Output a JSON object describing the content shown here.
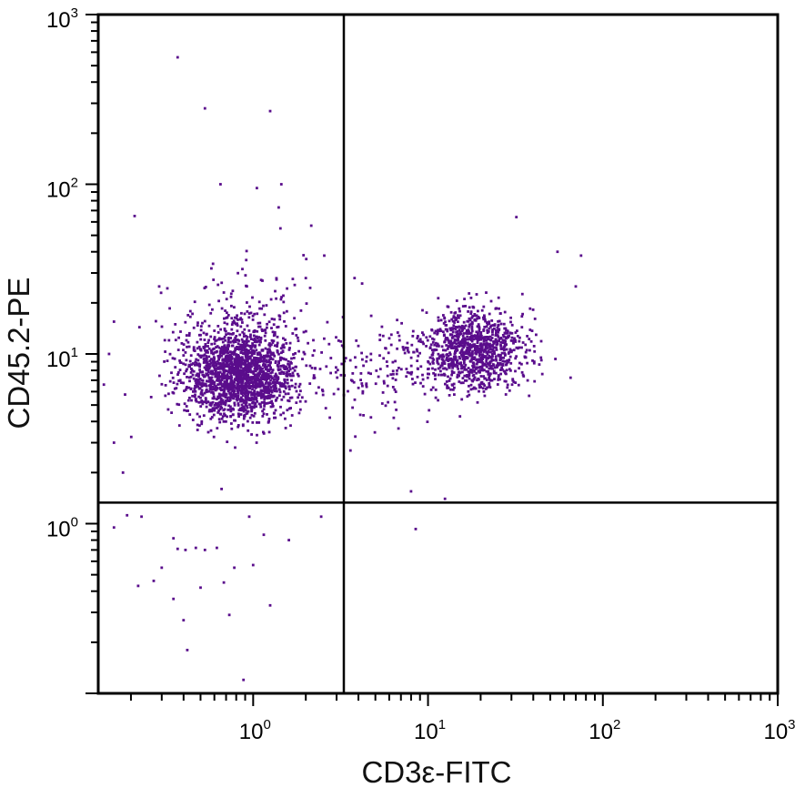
{
  "chart_data": {
    "type": "scatter",
    "title": "",
    "xlabel": "CD3ε-FITC",
    "ylabel": "CD45.2-PE",
    "x_scale": "log",
    "y_scale": "log",
    "xlim": [
      0.13,
      1000
    ],
    "ylim": [
      0.1,
      1000
    ],
    "x_tick_labels": [
      {
        "base": "10",
        "exp": "0",
        "value": 1
      },
      {
        "base": "10",
        "exp": "1",
        "value": 10
      },
      {
        "base": "10",
        "exp": "2",
        "value": 100
      },
      {
        "base": "10",
        "exp": "3",
        "value": 1000
      }
    ],
    "y_tick_labels": [
      {
        "base": "10",
        "exp": "0",
        "value": 1
      },
      {
        "base": "10",
        "exp": "1",
        "value": 10
      },
      {
        "base": "10",
        "exp": "2",
        "value": 100
      },
      {
        "base": "10",
        "exp": "3",
        "value": 1000
      }
    ],
    "quadrant_gates": {
      "x": 3.3,
      "y": 1.33
    },
    "grid": false,
    "legend": "none",
    "point_color": "#5a0d8c",
    "series": [
      {
        "clusters": [
          {
            "center": [
              0.85,
              7.5
            ],
            "spread": [
              0.16,
              0.13
            ],
            "count": 1800
          },
          {
            "center": [
              18,
              10.5
            ],
            "spread": [
              0.15,
              0.12
            ],
            "count": 1100
          },
          {
            "center": [
              0.8,
              12
            ],
            "spread": [
              0.2,
              0.22
            ],
            "count": 260
          },
          {
            "center": [
              5,
              8
            ],
            "spread": [
              0.14,
              0.14
            ],
            "count": 120
          }
        ],
        "points": [
          [
            0.37,
            560
          ],
          [
            0.53,
            280
          ],
          [
            1.25,
            270
          ],
          [
            0.65,
            100
          ],
          [
            1.45,
            100
          ],
          [
            1.05,
            95
          ],
          [
            0.21,
            65
          ],
          [
            1.4,
            73
          ],
          [
            2.15,
            57
          ],
          [
            32,
            64
          ],
          [
            0.12,
            1.1
          ],
          [
            0.19,
            1.12
          ],
          [
            0.41,
            0.7
          ],
          [
            0.47,
            0.72
          ],
          [
            0.62,
            0.72
          ],
          [
            0.53,
            0.7
          ],
          [
            0.37,
            0.71
          ],
          [
            0.22,
            0.43
          ],
          [
            0.27,
            0.46
          ],
          [
            0.35,
            0.36
          ],
          [
            0.4,
            0.27
          ],
          [
            0.73,
            0.29
          ],
          [
            0.42,
            0.18
          ],
          [
            0.88,
            0.12
          ],
          [
            1.0,
            0.57
          ],
          [
            1.25,
            0.33
          ],
          [
            2.45,
            1.1
          ],
          [
            0.35,
            0.82
          ],
          [
            0.23,
            1.1
          ],
          [
            0.18,
            2.0
          ],
          [
            8.5,
            0.93
          ],
          [
            12.5,
            1.4
          ],
          [
            8.0,
            1.55
          ],
          [
            0.14,
            6.6
          ],
          [
            0.16,
            3.0
          ],
          [
            0.16,
            15.5
          ],
          [
            0.29,
            25.0
          ],
          [
            70,
            25
          ],
          [
            55,
            40
          ],
          [
            75,
            38
          ],
          [
            3.6,
            2.7
          ],
          [
            0.12,
            9.0
          ],
          [
            0.15,
            10.0
          ],
          [
            2.0,
            28
          ],
          [
            2.55,
            38
          ],
          [
            0.66,
            1.6
          ],
          [
            0.95,
            1.1
          ],
          [
            1.15,
            0.86
          ],
          [
            0.78,
            0.55
          ],
          [
            0.5,
            0.42
          ],
          [
            0.3,
            0.55
          ],
          [
            0.16,
            0.95
          ],
          [
            0.68,
            0.45
          ],
          [
            1.6,
            0.8
          ],
          [
            3.8,
            28
          ],
          [
            4.2,
            26
          ]
        ]
      }
    ]
  }
}
